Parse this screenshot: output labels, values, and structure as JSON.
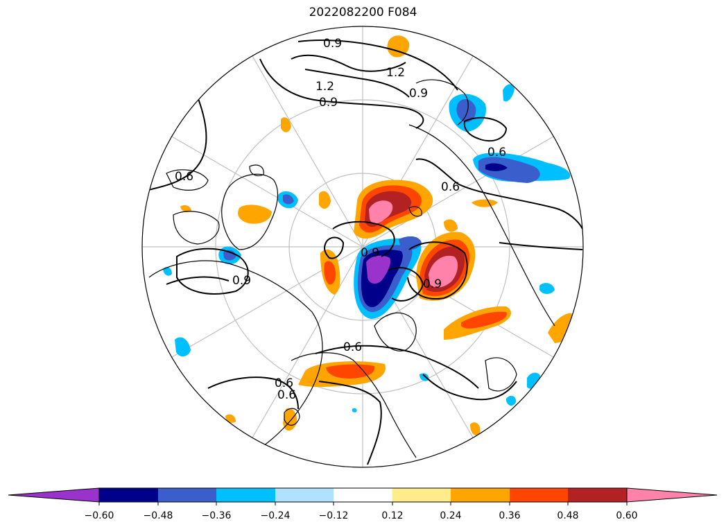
{
  "title": "2022082200 F084",
  "contour_labels": [
    "0.9",
    "1.2",
    "0.9",
    "1.2",
    "0.9",
    "0.6",
    "0.6",
    "0.6",
    "0.9",
    "0.9",
    "0.9",
    "0.6",
    "0.6",
    "0.6"
  ],
  "colorbar": {
    "colors": [
      "#9933cc",
      "#00008b",
      "#3a5fcd",
      "#00bfff",
      "#b0e2ff",
      "#ffffff",
      "#ffec8b",
      "#ffa500",
      "#ff4500",
      "#b22222",
      "#ff82ab"
    ],
    "tick_labels": [
      "−0.60",
      "−0.48",
      "−0.36",
      "−0.24",
      "−0.12",
      "0.12",
      "0.24",
      "0.36",
      "0.48",
      "0.60"
    ],
    "extend": "both"
  },
  "colors": {
    "land_outline": "#000000",
    "gridline": "#bfbfbf",
    "contour": "#000000"
  }
}
